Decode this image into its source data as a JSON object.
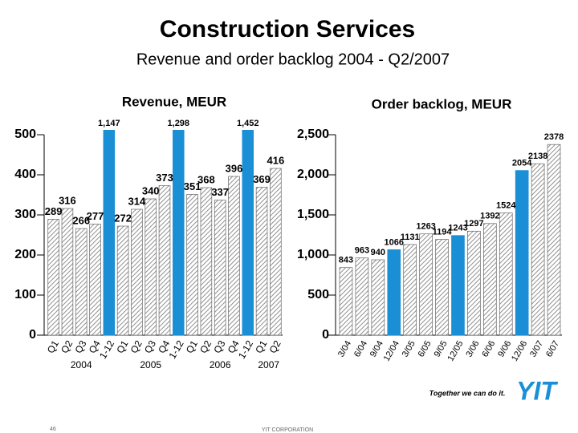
{
  "slide": {
    "title": "Construction Services",
    "subtitle": "Revenue and order backlog 2004 - Q2/2007",
    "tagline": "Together we can do it.",
    "logo": "YIT",
    "page_number": "46",
    "footer": "YIT CORPORATION"
  },
  "chart_data": [
    {
      "type": "bar",
      "title": "Revenue, MEUR",
      "categories": [
        "Q1",
        "Q2",
        "Q3",
        "Q4",
        "1-12",
        "Q1",
        "Q2",
        "Q3",
        "Q4",
        "1-12",
        "Q1",
        "Q2",
        "Q3",
        "Q4",
        "1-12",
        "Q1",
        "Q2"
      ],
      "group_labels": [
        "2004",
        "2005",
        "2006",
        "2007"
      ],
      "values": [
        289,
        316,
        266,
        277,
        1147,
        272,
        314,
        340,
        373,
        1298,
        351,
        368,
        337,
        396,
        1452,
        369,
        416
      ],
      "value_labels": [
        "289",
        "316",
        "266",
        "277",
        "1,147",
        "272",
        "314",
        "340",
        "373",
        "1,298",
        "351",
        "368",
        "337",
        "396",
        "1,452",
        "369",
        "416"
      ],
      "colors": [
        "#a0a0a0",
        "#a0a0a0",
        "#a0a0a0",
        "#a0a0a0",
        "#1a8fd6",
        "#a0a0a0",
        "#a0a0a0",
        "#a0a0a0",
        "#a0a0a0",
        "#1a8fd6",
        "#a0a0a0",
        "#a0a0a0",
        "#a0a0a0",
        "#a0a0a0",
        "#1a8fd6",
        "#a0a0a0",
        "#a0a0a0"
      ],
      "highlight_color": "#1a8fd6",
      "ylim": [
        0,
        500
      ],
      "yticks": [
        0,
        100,
        200,
        300,
        400,
        500
      ]
    },
    {
      "type": "bar",
      "title": "Order backlog, MEUR",
      "categories": [
        "3/04",
        "6/04",
        "9/04",
        "12/04",
        "3/05",
        "6/05",
        "9/05",
        "12/05",
        "3/06",
        "6/06",
        "9/06",
        "12/06",
        "3/07",
        "6/07"
      ],
      "values": [
        843,
        963,
        940,
        1066,
        1131,
        1263,
        1194,
        1243,
        1297,
        1392,
        1524,
        2054,
        2138,
        2378
      ],
      "colors": [
        "#a0a0a0",
        "#a0a0a0",
        "#a0a0a0",
        "#1a8fd6",
        "#a0a0a0",
        "#a0a0a0",
        "#a0a0a0",
        "#1a8fd6",
        "#a0a0a0",
        "#a0a0a0",
        "#a0a0a0",
        "#1a8fd6",
        "#a0a0a0",
        "#a0a0a0"
      ],
      "highlight_color": "#1a8fd6",
      "ylim": [
        0,
        2500
      ],
      "yticks": [
        0,
        500,
        {
          "value": 1000,
          "label": "1,000"
        },
        {
          "value": 1500,
          "label": "1,500"
        },
        {
          "value": 2000,
          "label": "2,000"
        },
        {
          "value": 2500,
          "label": "2,500"
        }
      ]
    }
  ]
}
